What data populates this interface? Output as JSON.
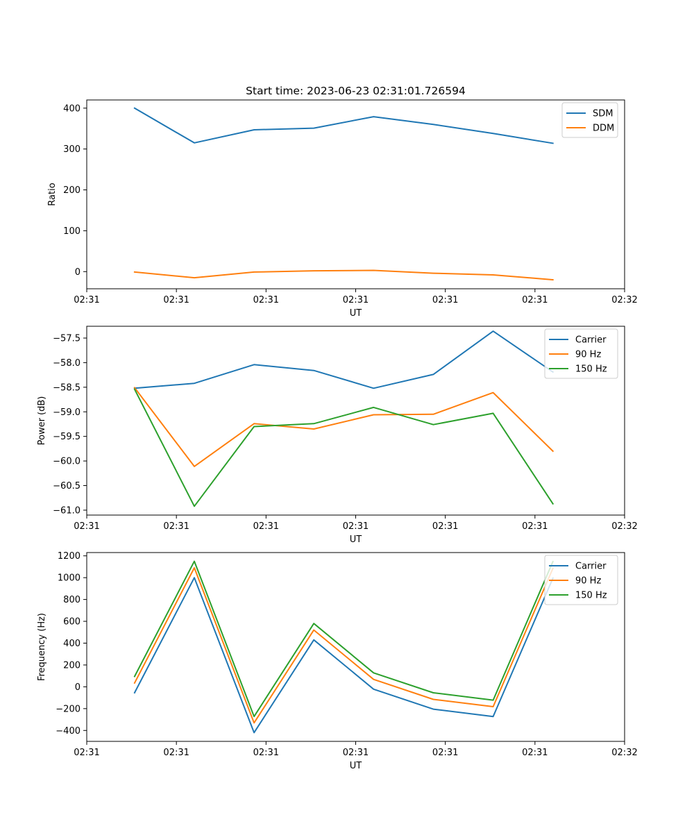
{
  "title": "Start time: 2023-06-23 02:31:01.726594",
  "chart_data": [
    {
      "type": "line",
      "xlabel": "UT",
      "ylabel": "Ratio",
      "x": [
        1,
        2,
        3,
        4,
        5,
        6,
        7,
        8
      ],
      "xlim": [
        0.2,
        9.2
      ],
      "xticks": [
        0.2,
        1.7,
        3.2,
        4.7,
        6.2,
        7.7,
        9.2
      ],
      "xtick_labels": [
        "02:31",
        "02:31",
        "02:31",
        "02:31",
        "02:31",
        "02:31",
        "02:31"
      ],
      "xtick_last_label": "02:32",
      "ylim": [
        -42,
        420
      ],
      "yticks": [
        0,
        100,
        200,
        300,
        400
      ],
      "ytick_labels": [
        "0",
        "100",
        "200",
        "300",
        "400"
      ],
      "legend": "top-right",
      "grid": false,
      "series": [
        {
          "name": "SDM",
          "color": "#1f77b4",
          "values": [
            400,
            315,
            347,
            351,
            379,
            360,
            338,
            314
          ]
        },
        {
          "name": "DDM",
          "color": "#ff7f0e",
          "values": [
            -1,
            -15,
            -1,
            2,
            3,
            -4,
            -8,
            -20
          ]
        }
      ]
    },
    {
      "type": "line",
      "xlabel": "UT",
      "ylabel": "Power (dB)",
      "x": [
        1,
        2,
        3,
        4,
        5,
        6,
        7,
        8
      ],
      "xlim": [
        0.2,
        9.2
      ],
      "xticks": [
        0.2,
        1.7,
        3.2,
        4.7,
        6.2,
        7.7,
        9.2
      ],
      "xtick_labels": [
        "02:31",
        "02:31",
        "02:31",
        "02:31",
        "02:31",
        "02:31",
        "02:31"
      ],
      "xtick_last_label": "02:32",
      "ylim": [
        -61.1,
        -57.26
      ],
      "yticks": [
        -61.0,
        -60.5,
        -60.0,
        -59.5,
        -59.0,
        -58.5,
        -58.0,
        -57.5
      ],
      "ytick_labels": [
        "−61.0",
        "−60.5",
        "−60.0",
        "−59.5",
        "−59.0",
        "−58.5",
        "−58.0",
        "−57.5"
      ],
      "legend": "top-right",
      "grid": false,
      "series": [
        {
          "name": "Carrier",
          "color": "#1f77b4",
          "values": [
            -58.52,
            -58.42,
            -58.04,
            -58.16,
            -58.52,
            -58.24,
            -57.36,
            -58.19
          ]
        },
        {
          "name": "90 Hz",
          "color": "#ff7f0e",
          "values": [
            -58.51,
            -60.11,
            -59.24,
            -59.35,
            -59.06,
            -59.05,
            -58.61,
            -59.8
          ]
        },
        {
          "name": "150 Hz",
          "color": "#2ca02c",
          "values": [
            -58.54,
            -60.92,
            -59.3,
            -59.24,
            -58.91,
            -59.26,
            -59.03,
            -60.87
          ]
        }
      ]
    },
    {
      "type": "line",
      "xlabel": "UT",
      "ylabel": "Frequency (Hz)",
      "x": [
        1,
        2,
        3,
        4,
        5,
        6,
        7,
        8
      ],
      "xlim": [
        0.2,
        9.2
      ],
      "xticks": [
        0.2,
        1.7,
        3.2,
        4.7,
        6.2,
        7.7,
        9.2
      ],
      "xtick_labels": [
        "02:31",
        "02:31",
        "02:31",
        "02:31",
        "02:31",
        "02:31",
        "02:31"
      ],
      "xtick_last_label": "02:32",
      "ylim": [
        -500,
        1230
      ],
      "yticks": [
        -400,
        -200,
        0,
        200,
        400,
        600,
        800,
        1000,
        1200
      ],
      "ytick_labels": [
        "−400",
        "−200",
        "0",
        "200",
        "400",
        "600",
        "800",
        "1000",
        "1200"
      ],
      "legend": "top-right",
      "grid": false,
      "series": [
        {
          "name": "Carrier",
          "color": "#1f77b4",
          "values": [
            -55,
            1000,
            -420,
            430,
            -22,
            -205,
            -272,
            995
          ]
        },
        {
          "name": "90 Hz",
          "color": "#ff7f0e",
          "values": [
            35,
            1090,
            -330,
            520,
            68,
            -115,
            -182,
            1085
          ]
        },
        {
          "name": "150 Hz",
          "color": "#2ca02c",
          "values": [
            95,
            1150,
            -272,
            580,
            128,
            -55,
            -122,
            1147
          ]
        }
      ]
    }
  ]
}
